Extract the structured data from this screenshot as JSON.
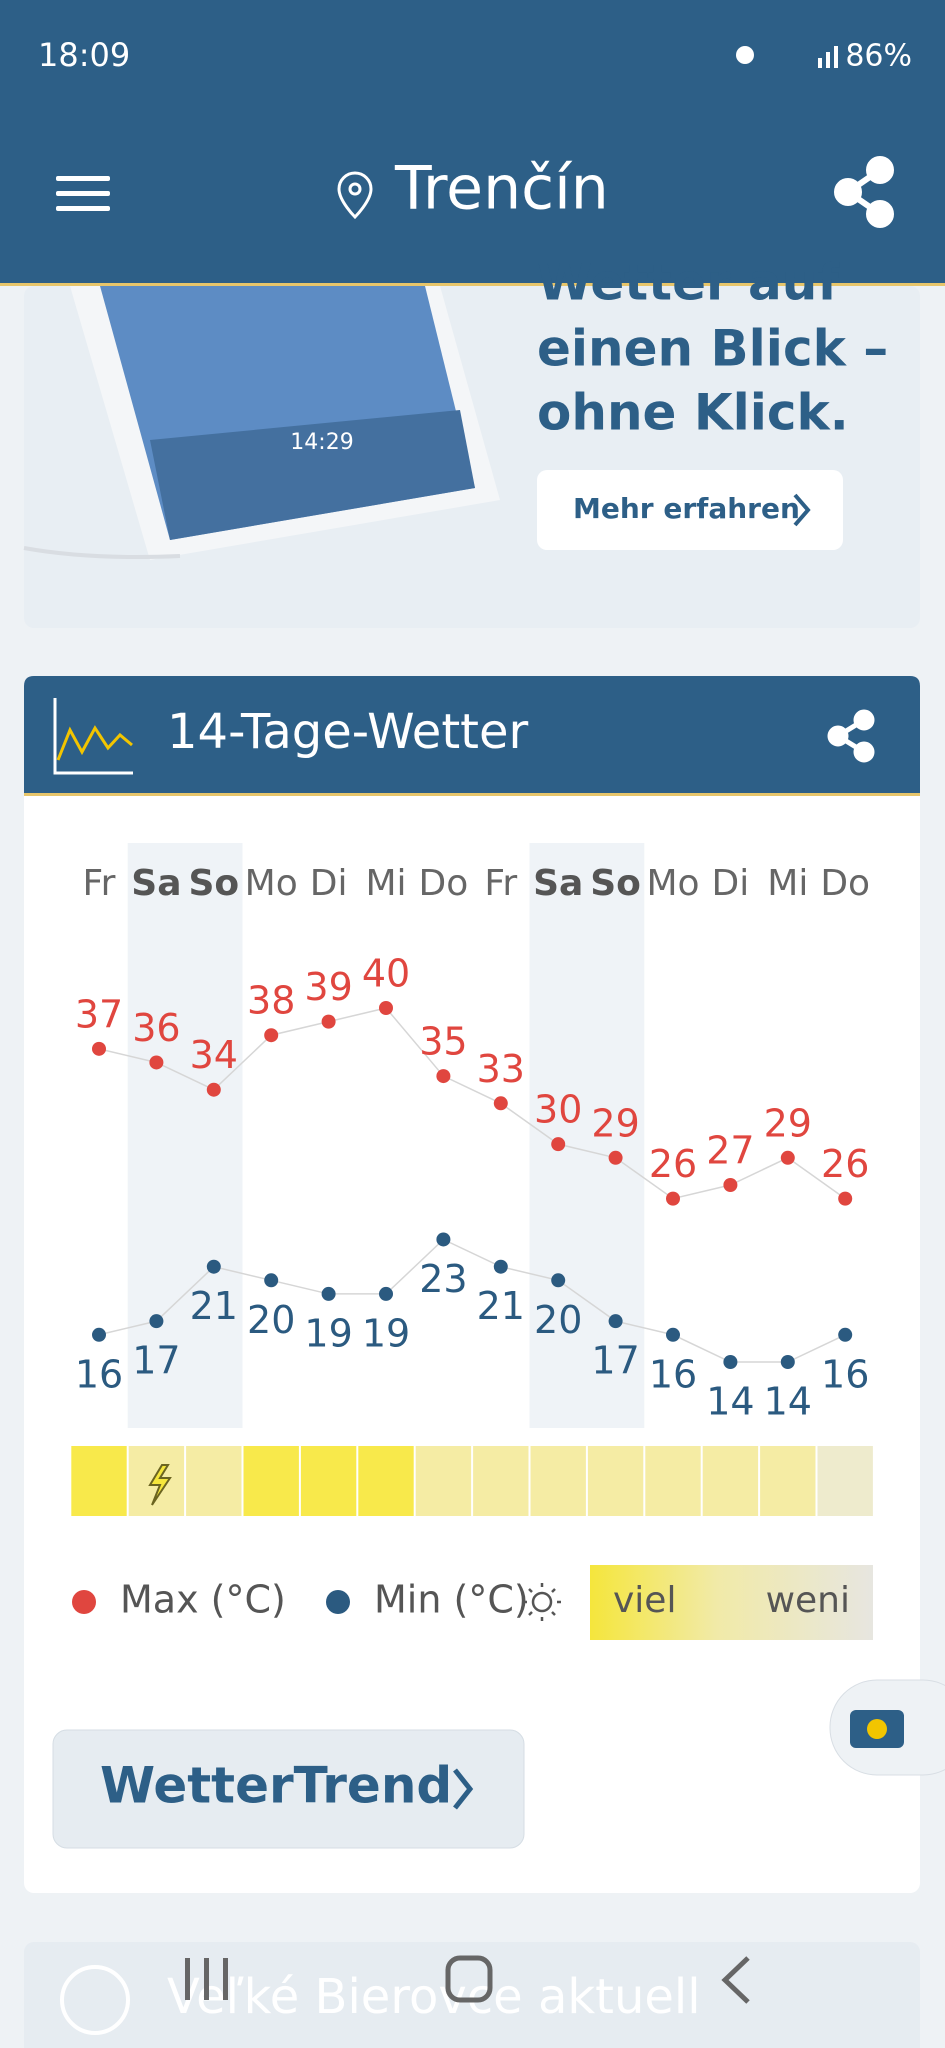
{
  "status_bar": {
    "time": "18:09",
    "battery": "86%"
  },
  "header": {
    "location": "Trenčín"
  },
  "ad": {
    "headline_lines": [
      "Wetter auf",
      "einen Blick –",
      "ohne Klick."
    ],
    "button": "Mehr erfahren",
    "device_time": "14:29"
  },
  "chart_data": {
    "type": "line",
    "title": "14-Tage-Wetter",
    "categories": [
      "Fr",
      "Sa",
      "So",
      "Mo",
      "Di",
      "Mi",
      "Do",
      "Fr",
      "Sa",
      "So",
      "Mo",
      "Di",
      "Mi",
      "Do"
    ],
    "series": [
      {
        "name": "Max (°C)",
        "color": "#e0463f",
        "values": [
          37,
          36,
          34,
          38,
          39,
          40,
          35,
          33,
          30,
          29,
          26,
          27,
          29,
          26
        ]
      },
      {
        "name": "Min (°C)",
        "color": "#2b5a80",
        "values": [
          16,
          17,
          21,
          20,
          19,
          19,
          23,
          21,
          20,
          17,
          16,
          14,
          14,
          16
        ]
      }
    ],
    "sunshine": {
      "values": [
        2,
        1,
        1,
        2,
        2,
        2,
        1,
        1,
        1,
        1,
        1,
        1,
        1,
        0
      ],
      "colors": [
        "#eeebcd",
        "#f5eca4",
        "#f8e94b"
      ],
      "legend": [
        "viel",
        "weni"
      ]
    }
  },
  "button": "WetterTrend",
  "next_card": {
    "title": "Veľké Bierovce aktuell"
  }
}
